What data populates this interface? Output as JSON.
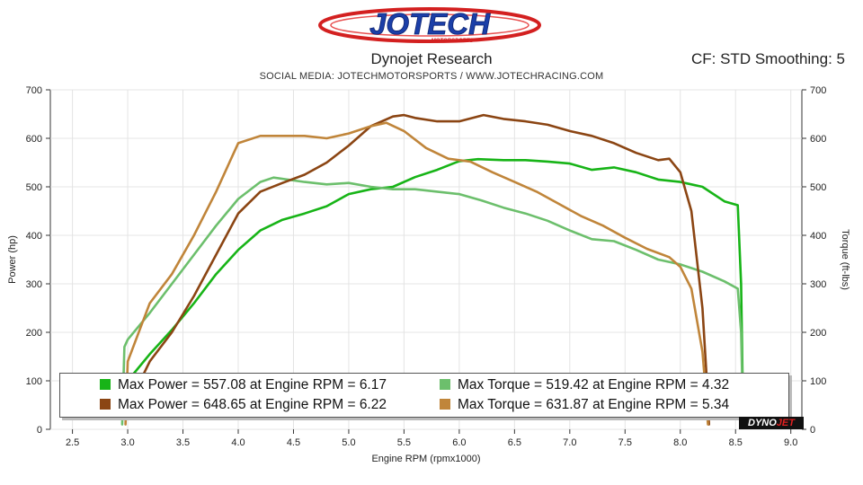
{
  "logo": {
    "name": "JOTECH",
    "sub": "MOTORSPORTS"
  },
  "header": {
    "title": "Dynojet Research",
    "cf": "CF: STD Smoothing: 5",
    "social": "SOCIAL MEDIA: JOTECHMOTORSPORTS    /    WWW.JOTECHRACING.COM"
  },
  "legend": {
    "row1_left": "Max Power = 557.08 at Engine RPM = 6.17",
    "row1_right": "Max Torque = 519.42 at Engine RPM = 4.32",
    "row2_left": "Max Power = 648.65 at Engine RPM = 6.22",
    "row2_right": "Max Torque = 631.87 at Engine RPM = 5.34"
  },
  "watermark": {
    "brand_a": "DYNO",
    "brand_b": "JET"
  },
  "colors": {
    "power1": "#17b417",
    "torque1": "#6cbf6c",
    "power2": "#8b4513",
    "torque2": "#c0853a"
  },
  "chart_data": {
    "type": "line",
    "title": "Dynojet Research",
    "xlabel": "Engine RPM (rpmx1000)",
    "ylabel": "Power (hp)",
    "y2label": "Torque (ft-lbs)",
    "xlim": [
      2.3,
      9.1
    ],
    "ylim": [
      0,
      700
    ],
    "y2lim": [
      0,
      700
    ],
    "xticks": [
      "2.5",
      "3.0",
      "3.5",
      "4.0",
      "4.5",
      "5.0",
      "5.5",
      "6.0",
      "6.5",
      "7.0",
      "7.5",
      "8.0",
      "8.5",
      "9.0"
    ],
    "yticks": [
      "0",
      "100",
      "200",
      "300",
      "400",
      "500",
      "600",
      "700"
    ],
    "series": [
      {
        "name": "Max Power = 557.08 at Engine RPM = 6.17",
        "axis": "left",
        "color": "#17b417",
        "x": [
          2.95,
          3.0,
          3.2,
          3.4,
          3.6,
          3.8,
          4.0,
          4.2,
          4.4,
          4.6,
          4.8,
          5.0,
          5.2,
          5.4,
          5.6,
          5.8,
          6.0,
          6.17,
          6.4,
          6.6,
          6.8,
          7.0,
          7.2,
          7.4,
          7.6,
          7.8,
          8.0,
          8.2,
          8.4,
          8.52,
          8.55,
          8.57
        ],
        "y": [
          75,
          100,
          155,
          205,
          260,
          320,
          370,
          410,
          432,
          445,
          460,
          485,
          495,
          500,
          520,
          535,
          553,
          557,
          555,
          555,
          552,
          548,
          535,
          540,
          530,
          515,
          510,
          500,
          470,
          462,
          300,
          10
        ]
      },
      {
        "name": "Max Torque = 519.42 at Engine RPM = 4.32",
        "axis": "right",
        "color": "#6cbf6c",
        "x": [
          2.95,
          2.97,
          3.0,
          3.2,
          3.4,
          3.6,
          3.8,
          4.0,
          4.2,
          4.32,
          4.6,
          4.8,
          5.0,
          5.2,
          5.4,
          5.6,
          5.8,
          6.0,
          6.2,
          6.4,
          6.6,
          6.8,
          7.0,
          7.2,
          7.4,
          7.6,
          7.8,
          8.0,
          8.2,
          8.4,
          8.52,
          8.55,
          8.57
        ],
        "y": [
          10,
          170,
          185,
          240,
          300,
          360,
          420,
          475,
          510,
          519,
          510,
          505,
          508,
          500,
          495,
          495,
          490,
          485,
          472,
          457,
          445,
          430,
          410,
          392,
          388,
          370,
          350,
          340,
          325,
          305,
          290,
          200,
          10
        ]
      },
      {
        "name": "Max Power = 648.65 at Engine RPM = 6.22",
        "axis": "left",
        "color": "#8b4513",
        "x": [
          3.05,
          3.2,
          3.4,
          3.6,
          3.8,
          4.0,
          4.2,
          4.4,
          4.6,
          4.8,
          5.0,
          5.2,
          5.4,
          5.5,
          5.6,
          5.8,
          6.0,
          6.22,
          6.4,
          6.6,
          6.8,
          7.0,
          7.2,
          7.4,
          7.6,
          7.8,
          7.9,
          8.0,
          8.1,
          8.2,
          8.24,
          8.26
        ],
        "y": [
          70,
          140,
          200,
          275,
          360,
          445,
          490,
          508,
          525,
          550,
          585,
          625,
          645,
          648,
          642,
          635,
          635,
          648,
          640,
          635,
          628,
          615,
          605,
          590,
          570,
          555,
          558,
          530,
          450,
          250,
          100,
          10
        ]
      },
      {
        "name": "Max Torque = 631.87 at Engine RPM = 5.34",
        "axis": "right",
        "color": "#c0853a",
        "x": [
          2.98,
          3.0,
          3.2,
          3.4,
          3.6,
          3.8,
          4.0,
          4.2,
          4.4,
          4.6,
          4.8,
          5.0,
          5.2,
          5.34,
          5.5,
          5.7,
          5.9,
          6.1,
          6.3,
          6.5,
          6.7,
          6.9,
          7.1,
          7.3,
          7.5,
          7.7,
          7.9,
          8.0,
          8.1,
          8.2,
          8.23,
          8.25
        ],
        "y": [
          10,
          140,
          260,
          320,
          400,
          490,
          590,
          605,
          605,
          605,
          600,
          610,
          625,
          632,
          615,
          580,
          558,
          552,
          530,
          510,
          490,
          465,
          440,
          420,
          395,
          372,
          355,
          335,
          290,
          160,
          80,
          10
        ]
      }
    ]
  }
}
